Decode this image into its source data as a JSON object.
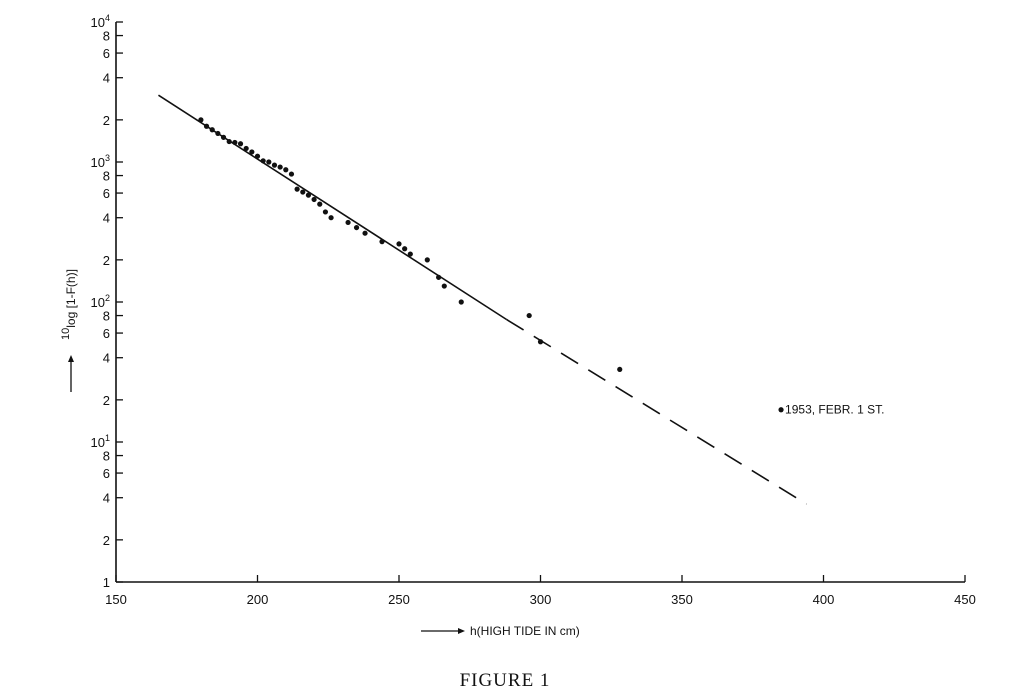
{
  "chart_data": {
    "type": "scatter",
    "title": "",
    "caption": "FIGURE 1",
    "xlabel": "h(HIGH TIDE IN cm)",
    "ylabel": "10log [1-F(h)]",
    "xlim": [
      150,
      450
    ],
    "ylim": [
      1,
      10000
    ],
    "y_scale": "log",
    "x_ticks": [
      150,
      200,
      250,
      300,
      350,
      400,
      450
    ],
    "x_tick_labels": [
      "150",
      "200",
      "250",
      "300",
      "350",
      "400",
      "450"
    ],
    "y_ticks": [
      1,
      2,
      4,
      6,
      8,
      10,
      20,
      40,
      60,
      80,
      100,
      200,
      400,
      600,
      800,
      1000,
      2000,
      4000,
      6000,
      8000,
      10000
    ],
    "y_tick_labels": [
      {
        "base": "1",
        "sup": ""
      },
      {
        "base": "2",
        "sup": ""
      },
      {
        "base": "4",
        "sup": ""
      },
      {
        "base": "6",
        "sup": ""
      },
      {
        "base": "8",
        "sup": ""
      },
      {
        "base": "10",
        "sup": "1"
      },
      {
        "base": "2",
        "sup": ""
      },
      {
        "base": "4",
        "sup": ""
      },
      {
        "base": "6",
        "sup": ""
      },
      {
        "base": "8",
        "sup": ""
      },
      {
        "base": "10",
        "sup": "2"
      },
      {
        "base": "2",
        "sup": ""
      },
      {
        "base": "4",
        "sup": ""
      },
      {
        "base": "6",
        "sup": ""
      },
      {
        "base": "8",
        "sup": ""
      },
      {
        "base": "10",
        "sup": "3"
      },
      {
        "base": "2",
        "sup": ""
      },
      {
        "base": "4",
        "sup": ""
      },
      {
        "base": "6",
        "sup": ""
      },
      {
        "base": "8",
        "sup": ""
      },
      {
        "base": "10",
        "sup": "4"
      }
    ],
    "grid": false,
    "series": [
      {
        "points": [
          [
            180,
            2000
          ],
          [
            182,
            1800
          ],
          [
            184,
            1700
          ],
          [
            186,
            1600
          ],
          [
            188,
            1500
          ],
          [
            190,
            1400
          ],
          [
            192,
            1380
          ],
          [
            194,
            1350
          ],
          [
            196,
            1250
          ],
          [
            198,
            1180
          ],
          [
            200,
            1100
          ],
          [
            202,
            1020
          ],
          [
            204,
            1000
          ],
          [
            206,
            950
          ],
          [
            208,
            920
          ],
          [
            210,
            880
          ],
          [
            212,
            820
          ],
          [
            214,
            640
          ],
          [
            216,
            610
          ],
          [
            218,
            580
          ],
          [
            220,
            540
          ],
          [
            222,
            500
          ],
          [
            224,
            440
          ],
          [
            226,
            400
          ],
          [
            232,
            370
          ],
          [
            235,
            340
          ],
          [
            238,
            310
          ],
          [
            244,
            270
          ],
          [
            250,
            260
          ],
          [
            252,
            240
          ],
          [
            254,
            220
          ],
          [
            260,
            200
          ],
          [
            264,
            150
          ],
          [
            266,
            130
          ],
          [
            272,
            100
          ],
          [
            296,
            80
          ],
          [
            300,
            52
          ],
          [
            328,
            33
          ],
          [
            385,
            17
          ]
        ]
      }
    ],
    "fit_line": {
      "solid": {
        "from": [
          165,
          3000
        ],
        "to": [
          288,
          75
        ]
      },
      "dashed": {
        "from": [
          288,
          75
        ],
        "to": [
          394,
          3.6
        ]
      }
    },
    "annotations": [
      {
        "text": "1953, FEBR. 1 ST.",
        "x": 385,
        "y": 17
      }
    ]
  }
}
